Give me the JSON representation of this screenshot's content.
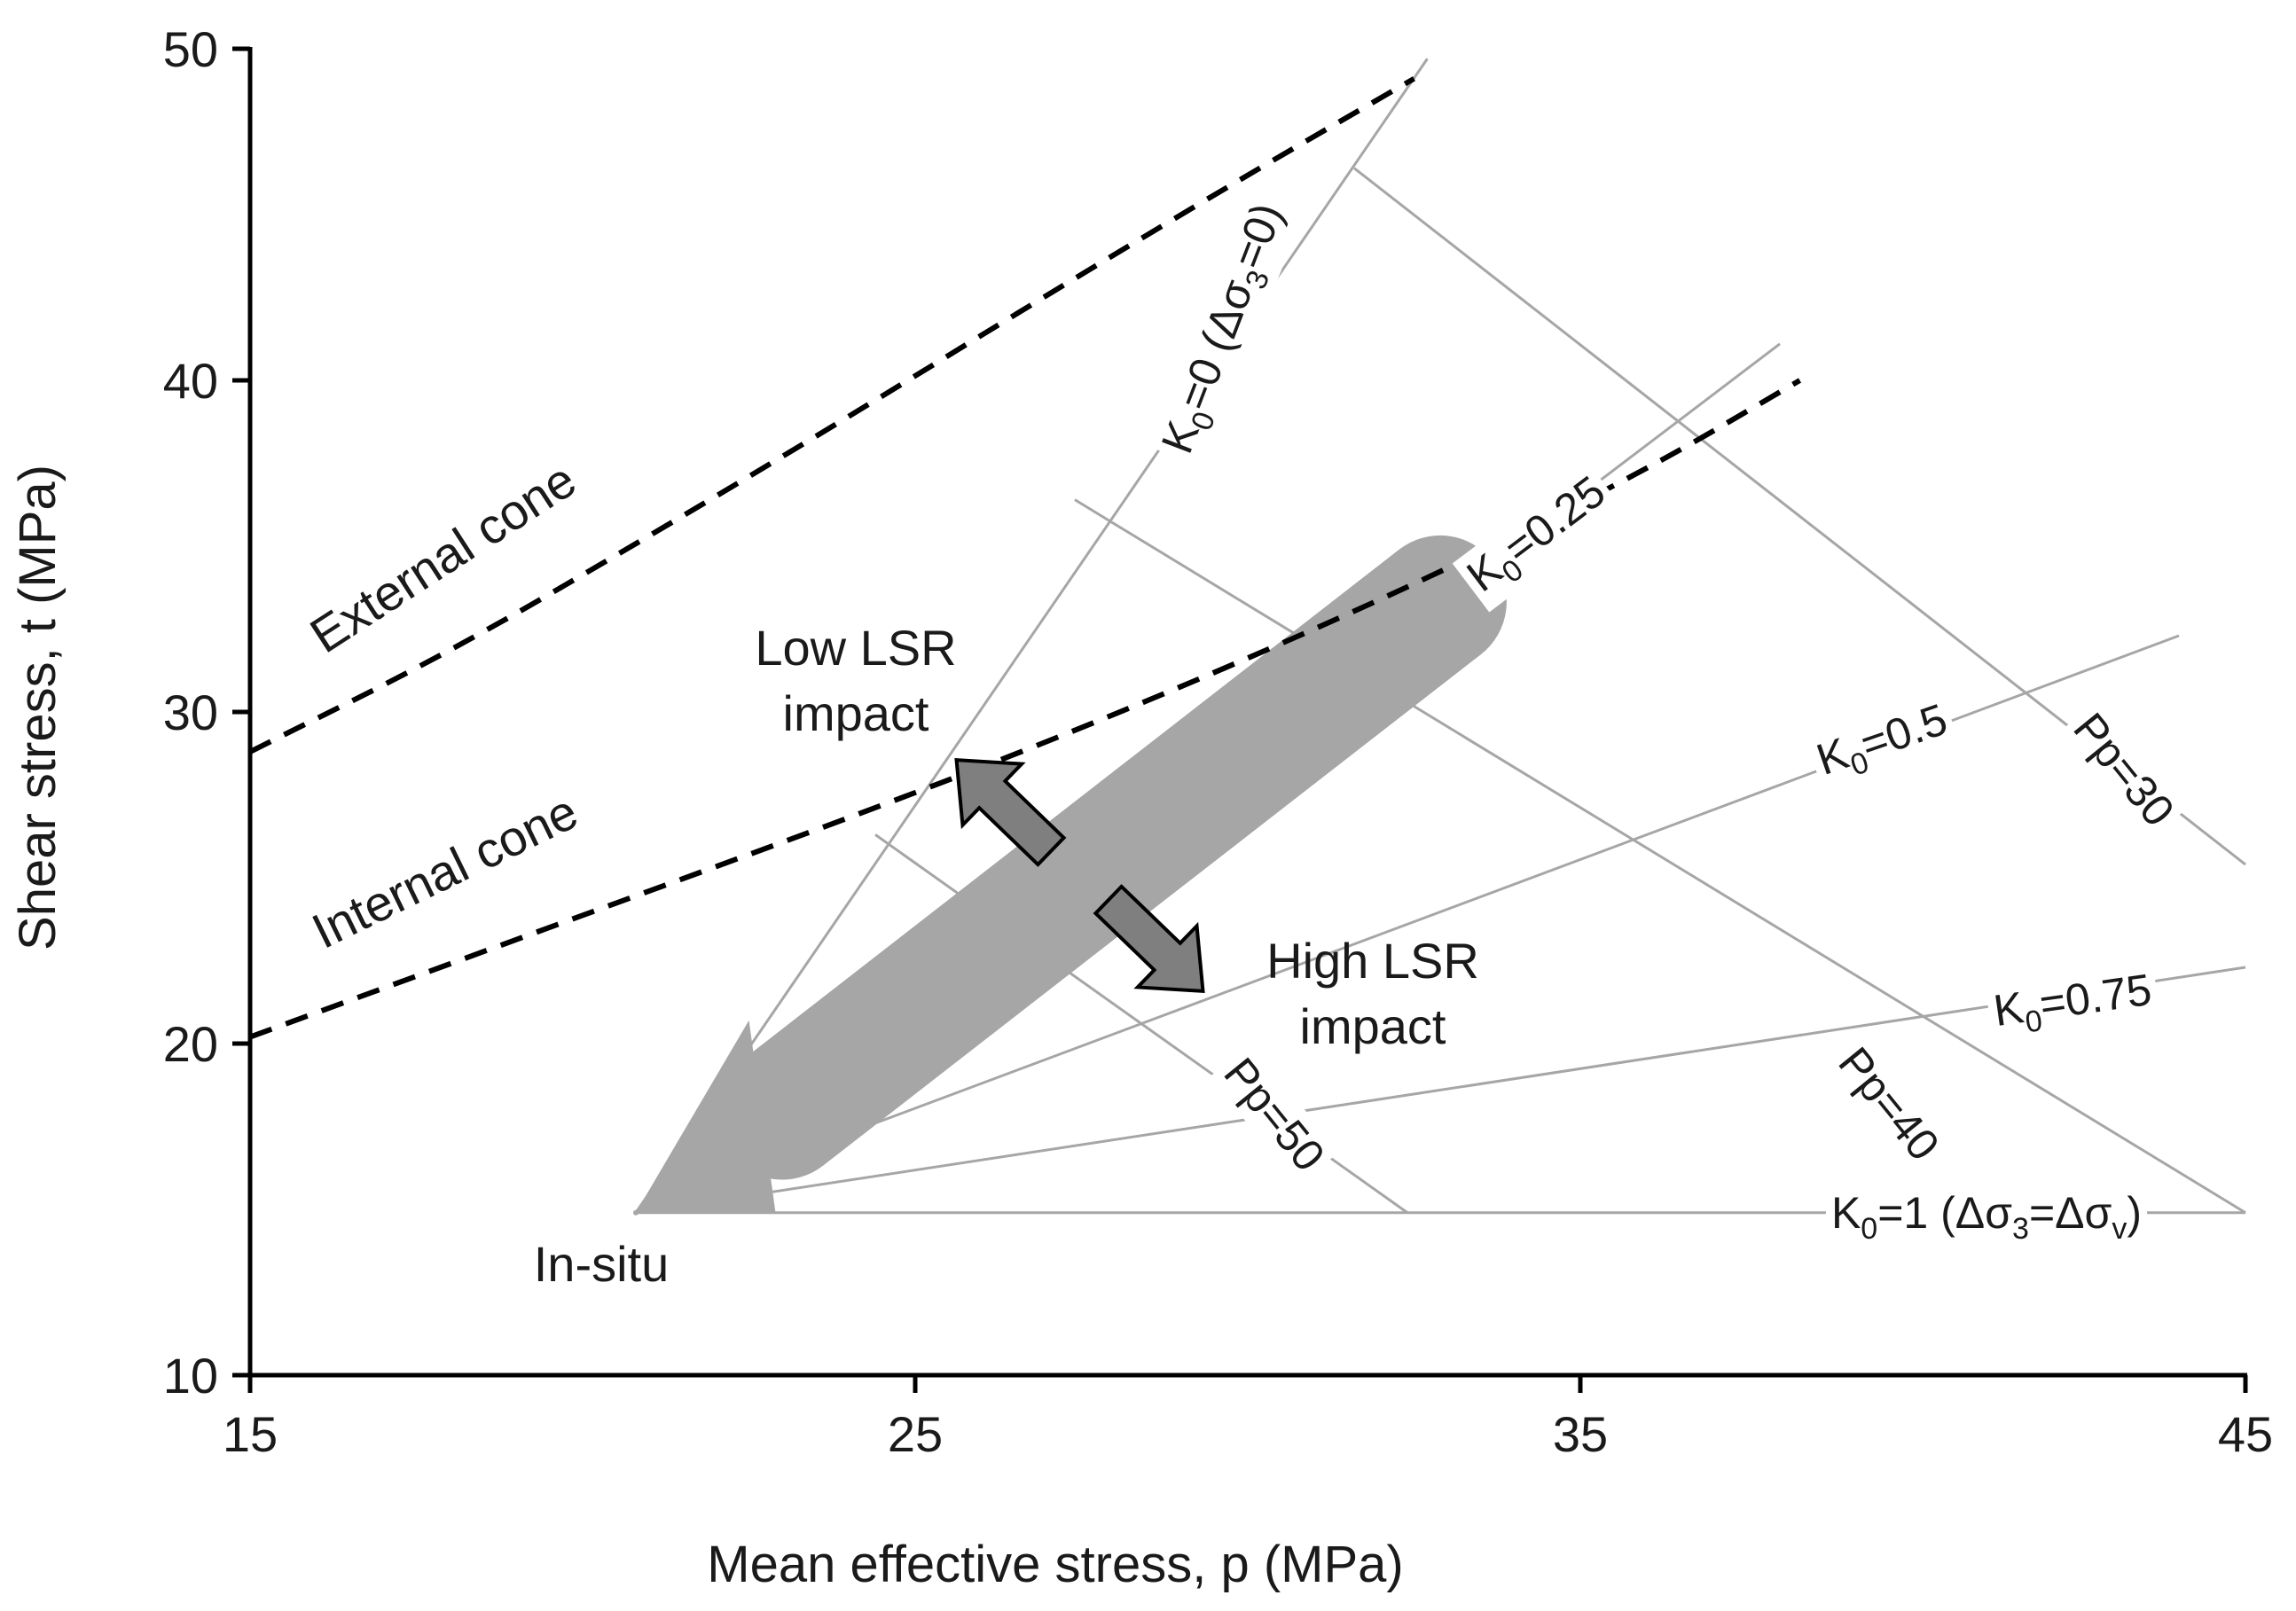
{
  "chart_data": {
    "type": "line",
    "title": "",
    "xlabel": "Mean effective stress, p (MPa)",
    "ylabel": "Shear stress, t (MPa)",
    "xlim": [
      15,
      45
    ],
    "ylim": [
      10,
      50
    ],
    "xticks": [
      15,
      25,
      35,
      45
    ],
    "yticks": [
      10,
      20,
      30,
      40,
      50
    ],
    "grid": false,
    "colors": {
      "axis": "#000000",
      "thin_line": "#a6a6a6",
      "band": "#a6a6a6",
      "arrow_fill": "#7f7f7f",
      "arrow_stroke": "#000000",
      "text": "#1a1a1a"
    },
    "in_situ": {
      "label": "In-situ",
      "p": 20.8,
      "t": 14.9
    },
    "cones": [
      {
        "name": "External cone",
        "style": "dashed",
        "x": [
          15,
          18,
          21,
          24,
          27,
          30,
          32.5
        ],
        "y": [
          28.8,
          31.8,
          35.3,
          38.9,
          42.6,
          46.2,
          49.1
        ]
      },
      {
        "name": "Internal cone",
        "style": "dashed",
        "x": [
          15,
          18,
          21,
          24,
          27,
          30,
          33,
          36,
          38.3
        ],
        "y": [
          20.2,
          22.4,
          24.6,
          26.8,
          29.1,
          31.6,
          34.3,
          37.3,
          40.0
        ]
      }
    ],
    "stress_paths": [
      {
        "name": "K0=0",
        "label_base": "K",
        "label_sub": "0",
        "label_rest": "=0 (Δσ",
        "label_sub2": "3",
        "label_tail": "=0)",
        "x": [
          20.8,
          32.7
        ],
        "y": [
          14.9,
          49.7
        ]
      },
      {
        "name": "K0=0.25",
        "label_base": "K",
        "label_sub": "0",
        "label_rest": "=0.25",
        "label_sub2": "",
        "label_tail": "",
        "x": [
          20.8,
          38.0
        ],
        "y": [
          14.9,
          41.1
        ]
      },
      {
        "name": "K0=0.5",
        "label_base": "K",
        "label_sub": "0",
        "label_rest": "=0.5",
        "label_sub2": "",
        "label_tail": "",
        "x": [
          20.8,
          44.0
        ],
        "y": [
          14.9,
          32.3
        ]
      },
      {
        "name": "K0=0.75",
        "label_base": "K",
        "label_sub": "0",
        "label_rest": "=0.75",
        "label_sub2": "",
        "label_tail": "",
        "x": [
          20.8,
          45.0
        ],
        "y": [
          14.9,
          22.3
        ]
      },
      {
        "name": "K0=1",
        "label_base": "K",
        "label_sub": "0",
        "label_rest": "=1 (Δσ",
        "label_sub2": "3",
        "label_tail": "=Δσ",
        "label_sub3": "v",
        "label_end": ")",
        "x": [
          20.8,
          45.0
        ],
        "y": [
          14.9,
          14.9
        ]
      }
    ],
    "pore_pressure_lines": [
      {
        "name": "Pp=30",
        "label": "Pp=30",
        "x": [
          31.6,
          45.0
        ],
        "y": [
          46.4,
          25.4
        ]
      },
      {
        "name": "Pp=40",
        "label": "Pp=40",
        "x": [
          27.4,
          45.0
        ],
        "y": [
          36.4,
          14.9
        ]
      },
      {
        "name": "Pp=50",
        "label": "Pp=50",
        "x": [
          24.4,
          32.4
        ],
        "y": [
          26.3,
          14.9
        ]
      }
    ],
    "annotations": {
      "external_cone": "External cone",
      "internal_cone": "Internal cone",
      "low_lsr_line1": "Low LSR",
      "low_lsr_line2": "impact",
      "high_lsr_line1": "High LSR",
      "high_lsr_line2": "impact"
    }
  }
}
